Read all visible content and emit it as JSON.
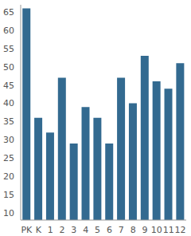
{
  "chart_data": {
    "type": "bar",
    "categories": [
      "PK",
      "K",
      "1",
      "2",
      "3",
      "4",
      "5",
      "6",
      "7",
      "8",
      "9",
      "10",
      "11",
      "12"
    ],
    "values": [
      66,
      36,
      32,
      47,
      29,
      39,
      36,
      29,
      47,
      40,
      53,
      46,
      44,
      51
    ],
    "color": "#336a90",
    "ylim": [
      8,
      67
    ],
    "yticks": [
      10,
      15,
      20,
      25,
      30,
      35,
      40,
      45,
      50,
      55,
      60,
      65
    ],
    "grid": false
  }
}
